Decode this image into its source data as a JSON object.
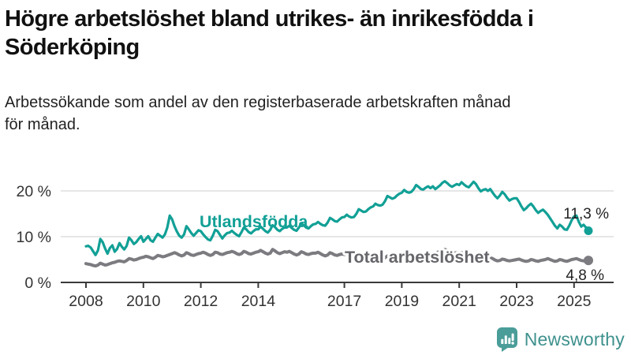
{
  "header": {
    "title_lines": [
      "Högre arbetslöshet bland utrikes- än inrikesfödda i",
      "Söderköping"
    ],
    "subtitle_lines": [
      "Arbetssökande som andel av den registerbaserade arbetskraften månad",
      "för månad."
    ]
  },
  "footer": {
    "brand": "Newsworthy",
    "logo_icon": "bar-chart-speech-bubble-icon"
  },
  "colors": {
    "teal_line": "#12a096",
    "gray_line": "#7b7b80",
    "gray_label": "#66666b",
    "axis": "#3a3a3a",
    "grid": "#dedede",
    "tick_text": "#333333",
    "value_text": "#222222",
    "brand_teal": "#3e918d",
    "logo_bg": "#4a9d99"
  },
  "chart_data": {
    "type": "line",
    "title": "Högre arbetslöshet bland utrikes- än inrikesfödda i Söderköping",
    "subtitle": "Arbetssökande som andel av den registerbaserade arbetskraften månad för månad.",
    "legend": "inline-labels",
    "grid": "horizontal-only",
    "x_unit": "month",
    "x_start_year": 2008,
    "x_end_label_year": 2025,
    "x_ticks": [
      2008,
      2010,
      2012,
      2014,
      2017,
      2019,
      2021,
      2023,
      2025
    ],
    "y_ticks": [
      {
        "value": 0,
        "label": "0 %"
      },
      {
        "value": 10,
        "label": "10 %"
      },
      {
        "value": 20,
        "label": "20 %"
      }
    ],
    "ylim": [
      0,
      24
    ],
    "series": [
      {
        "name": "Utlandsfödda",
        "color_key": "teal_line",
        "end_label": "11,3 %",
        "end_value": 11.3,
        "values": [
          7.9,
          8.0,
          7.6,
          6.8,
          6.0,
          7.0,
          9.5,
          8.8,
          7.4,
          6.3,
          7.5,
          8.1,
          6.7,
          7.3,
          8.6,
          7.8,
          7.2,
          8.0,
          9.8,
          9.2,
          8.4,
          8.8,
          9.5,
          10.1,
          8.9,
          9.5,
          10.1,
          9.2,
          8.9,
          9.8,
          10.6,
          10.2,
          9.8,
          10.5,
          12.0,
          14.6,
          13.8,
          12.3,
          11.1,
          10.2,
          9.8,
          10.5,
          12.3,
          11.6,
          10.8,
          10.2,
          10.8,
          11.4,
          11.2,
          10.5,
          9.9,
          9.4,
          9.2,
          10.2,
          11.5,
          11.2,
          10.4,
          9.6,
          10.3,
          10.8,
          10.9,
          11.3,
          10.8,
          10.4,
          10.1,
          11.0,
          12.0,
          11.6,
          11.0,
          10.7,
          11.2,
          11.6,
          11.6,
          12.2,
          11.7,
          11.2,
          10.9,
          11.5,
          12.5,
          12.1,
          11.5,
          11.2,
          11.7,
          12.0,
          12.0,
          12.4,
          11.9,
          11.5,
          11.3,
          12.0,
          12.9,
          12.5,
          12.0,
          11.8,
          12.3,
          12.7,
          12.8,
          13.2,
          12.8,
          12.5,
          12.4,
          13.1,
          14.1,
          13.8,
          13.4,
          13.3,
          13.8,
          14.2,
          14.3,
          14.8,
          14.4,
          14.2,
          14.3,
          15.0,
          16.0,
          15.7,
          15.4,
          15.5,
          16.0,
          16.4,
          16.6,
          17.2,
          16.9,
          16.8,
          17.0,
          17.8,
          18.9,
          18.6,
          18.3,
          18.5,
          19.0,
          19.4,
          19.6,
          20.2,
          19.8,
          19.6,
          19.8,
          20.4,
          21.3,
          20.9,
          20.4,
          20.3,
          20.7,
          21.0,
          20.6,
          21.0,
          20.4,
          20.8,
          21.2,
          21.8,
          22.1,
          21.7,
          21.2,
          20.9,
          21.2,
          21.5,
          21.3,
          21.9,
          21.4,
          21.0,
          20.8,
          21.4,
          22.0,
          21.5,
          20.6,
          19.9,
          20.2,
          20.4,
          20.0,
          20.4,
          19.6,
          18.9,
          18.4,
          19.0,
          19.8,
          19.3,
          18.5,
          17.9,
          18.2,
          18.4,
          18.4,
          17.6,
          16.6,
          15.8,
          16.2,
          16.8,
          17.2,
          16.6,
          15.8,
          15.2,
          15.6,
          15.9,
          15.4,
          14.8,
          14.0,
          13.2,
          12.4,
          11.8,
          12.6,
          12.2,
          11.6,
          11.5,
          12.4,
          13.6,
          14.4,
          14.6,
          13.2,
          12.2,
          12.6,
          12.0,
          11.3
        ]
      },
      {
        "name": "Total arbetslöshet",
        "color_key": "gray_line",
        "end_label": "4,8 %",
        "end_value": 4.8,
        "values": [
          4.1,
          4.0,
          3.9,
          3.7,
          3.6,
          3.8,
          4.2,
          4.0,
          3.8,
          3.9,
          4.1,
          4.3,
          4.4,
          4.6,
          4.7,
          4.6,
          4.5,
          4.8,
          5.2,
          5.1,
          4.9,
          5.0,
          5.2,
          5.4,
          5.5,
          5.7,
          5.6,
          5.4,
          5.2,
          5.5,
          5.9,
          5.8,
          5.6,
          5.7,
          5.9,
          6.1,
          6.3,
          6.5,
          6.3,
          6.0,
          5.8,
          6.0,
          6.5,
          6.3,
          6.0,
          5.9,
          6.1,
          6.3,
          6.4,
          6.6,
          6.4,
          6.1,
          5.9,
          6.1,
          6.6,
          6.5,
          6.2,
          6.1,
          6.3,
          6.5,
          6.6,
          6.8,
          6.6,
          6.3,
          6.1,
          6.3,
          6.8,
          6.6,
          6.3,
          6.2,
          6.4,
          6.6,
          6.7,
          7.0,
          6.7,
          6.4,
          6.2,
          6.4,
          7.2,
          6.9,
          6.5,
          6.3,
          6.5,
          6.7,
          6.6,
          6.8,
          6.5,
          6.2,
          6.0,
          6.2,
          6.7,
          6.5,
          6.2,
          6.1,
          6.3,
          6.4,
          6.4,
          6.6,
          6.3,
          6.0,
          5.8,
          6.0,
          6.5,
          6.3,
          6.0,
          5.9,
          6.1,
          6.2,
          6.1,
          6.3,
          6.0,
          5.7,
          5.5,
          5.7,
          6.1,
          5.9,
          5.7,
          5.6,
          5.8,
          5.9,
          5.8,
          6.0,
          5.7,
          5.4,
          5.2,
          5.4,
          5.8,
          5.6,
          5.4,
          5.3,
          5.5,
          5.6,
          5.6,
          5.8,
          5.5,
          5.3,
          5.2,
          5.4,
          5.8,
          5.6,
          5.4,
          5.3,
          5.5,
          5.7,
          5.8,
          6.0,
          6.2,
          6.6,
          6.8,
          7.0,
          7.2,
          7.0,
          6.8,
          6.6,
          6.5,
          6.4,
          6.4,
          6.5,
          6.3,
          6.0,
          5.8,
          5.8,
          6.0,
          5.8,
          5.5,
          5.3,
          5.3,
          5.4,
          5.3,
          5.4,
          5.2,
          4.9,
          4.7,
          4.8,
          5.1,
          5.0,
          4.8,
          4.7,
          4.8,
          4.9,
          5.0,
          5.1,
          4.9,
          4.7,
          4.6,
          4.7,
          5.0,
          4.9,
          4.7,
          4.6,
          4.8,
          4.9,
          5.0,
          5.2,
          5.0,
          4.8,
          4.6,
          4.7,
          5.0,
          4.9,
          4.7,
          4.6,
          4.8,
          5.0,
          5.1,
          5.2,
          5.0,
          4.8,
          4.7,
          4.9,
          4.8
        ]
      }
    ]
  }
}
